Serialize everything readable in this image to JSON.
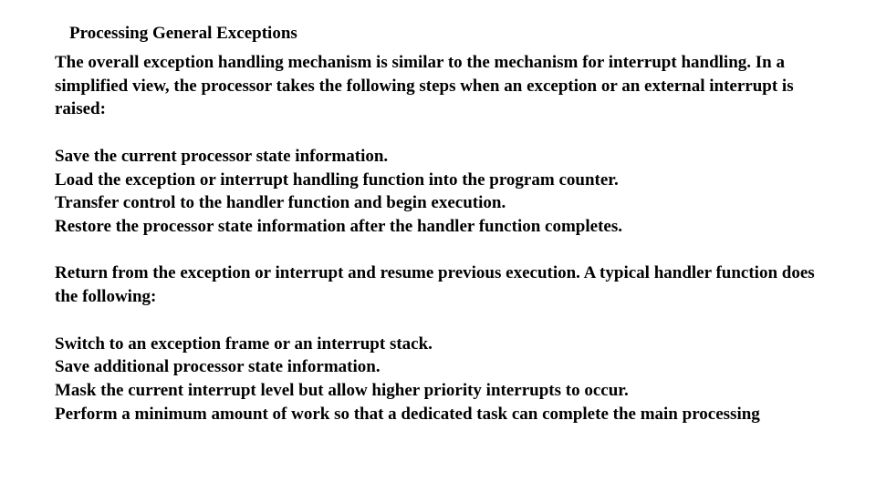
{
  "text_color": "#000000",
  "background_color": "#ffffff",
  "font_family": "Times New Roman",
  "heading": "Processing General Exceptions",
  "intro": "The overall exception handling mechanism is similar to the mechanism for interrupt handling. In a simplified view, the processor takes the following steps when an exception or an external interrupt is raised:",
  "steps_a": [
    "Save the current processor state information.",
    "Load the exception or interrupt handling function into the program counter.",
    "Transfer control to the handler function and begin execution.",
    "Restore the processor state information after the handler function completes."
  ],
  "mid": "Return from the exception or interrupt and resume previous execution. A typical handler function does the following:",
  "steps_b": [
    "Switch to an exception frame or an interrupt stack.",
    "Save additional processor state information.",
    "Mask the current interrupt level but allow higher priority interrupts to occur.",
    "Perform a minimum amount of work so that a dedicated task can complete the main processing"
  ]
}
